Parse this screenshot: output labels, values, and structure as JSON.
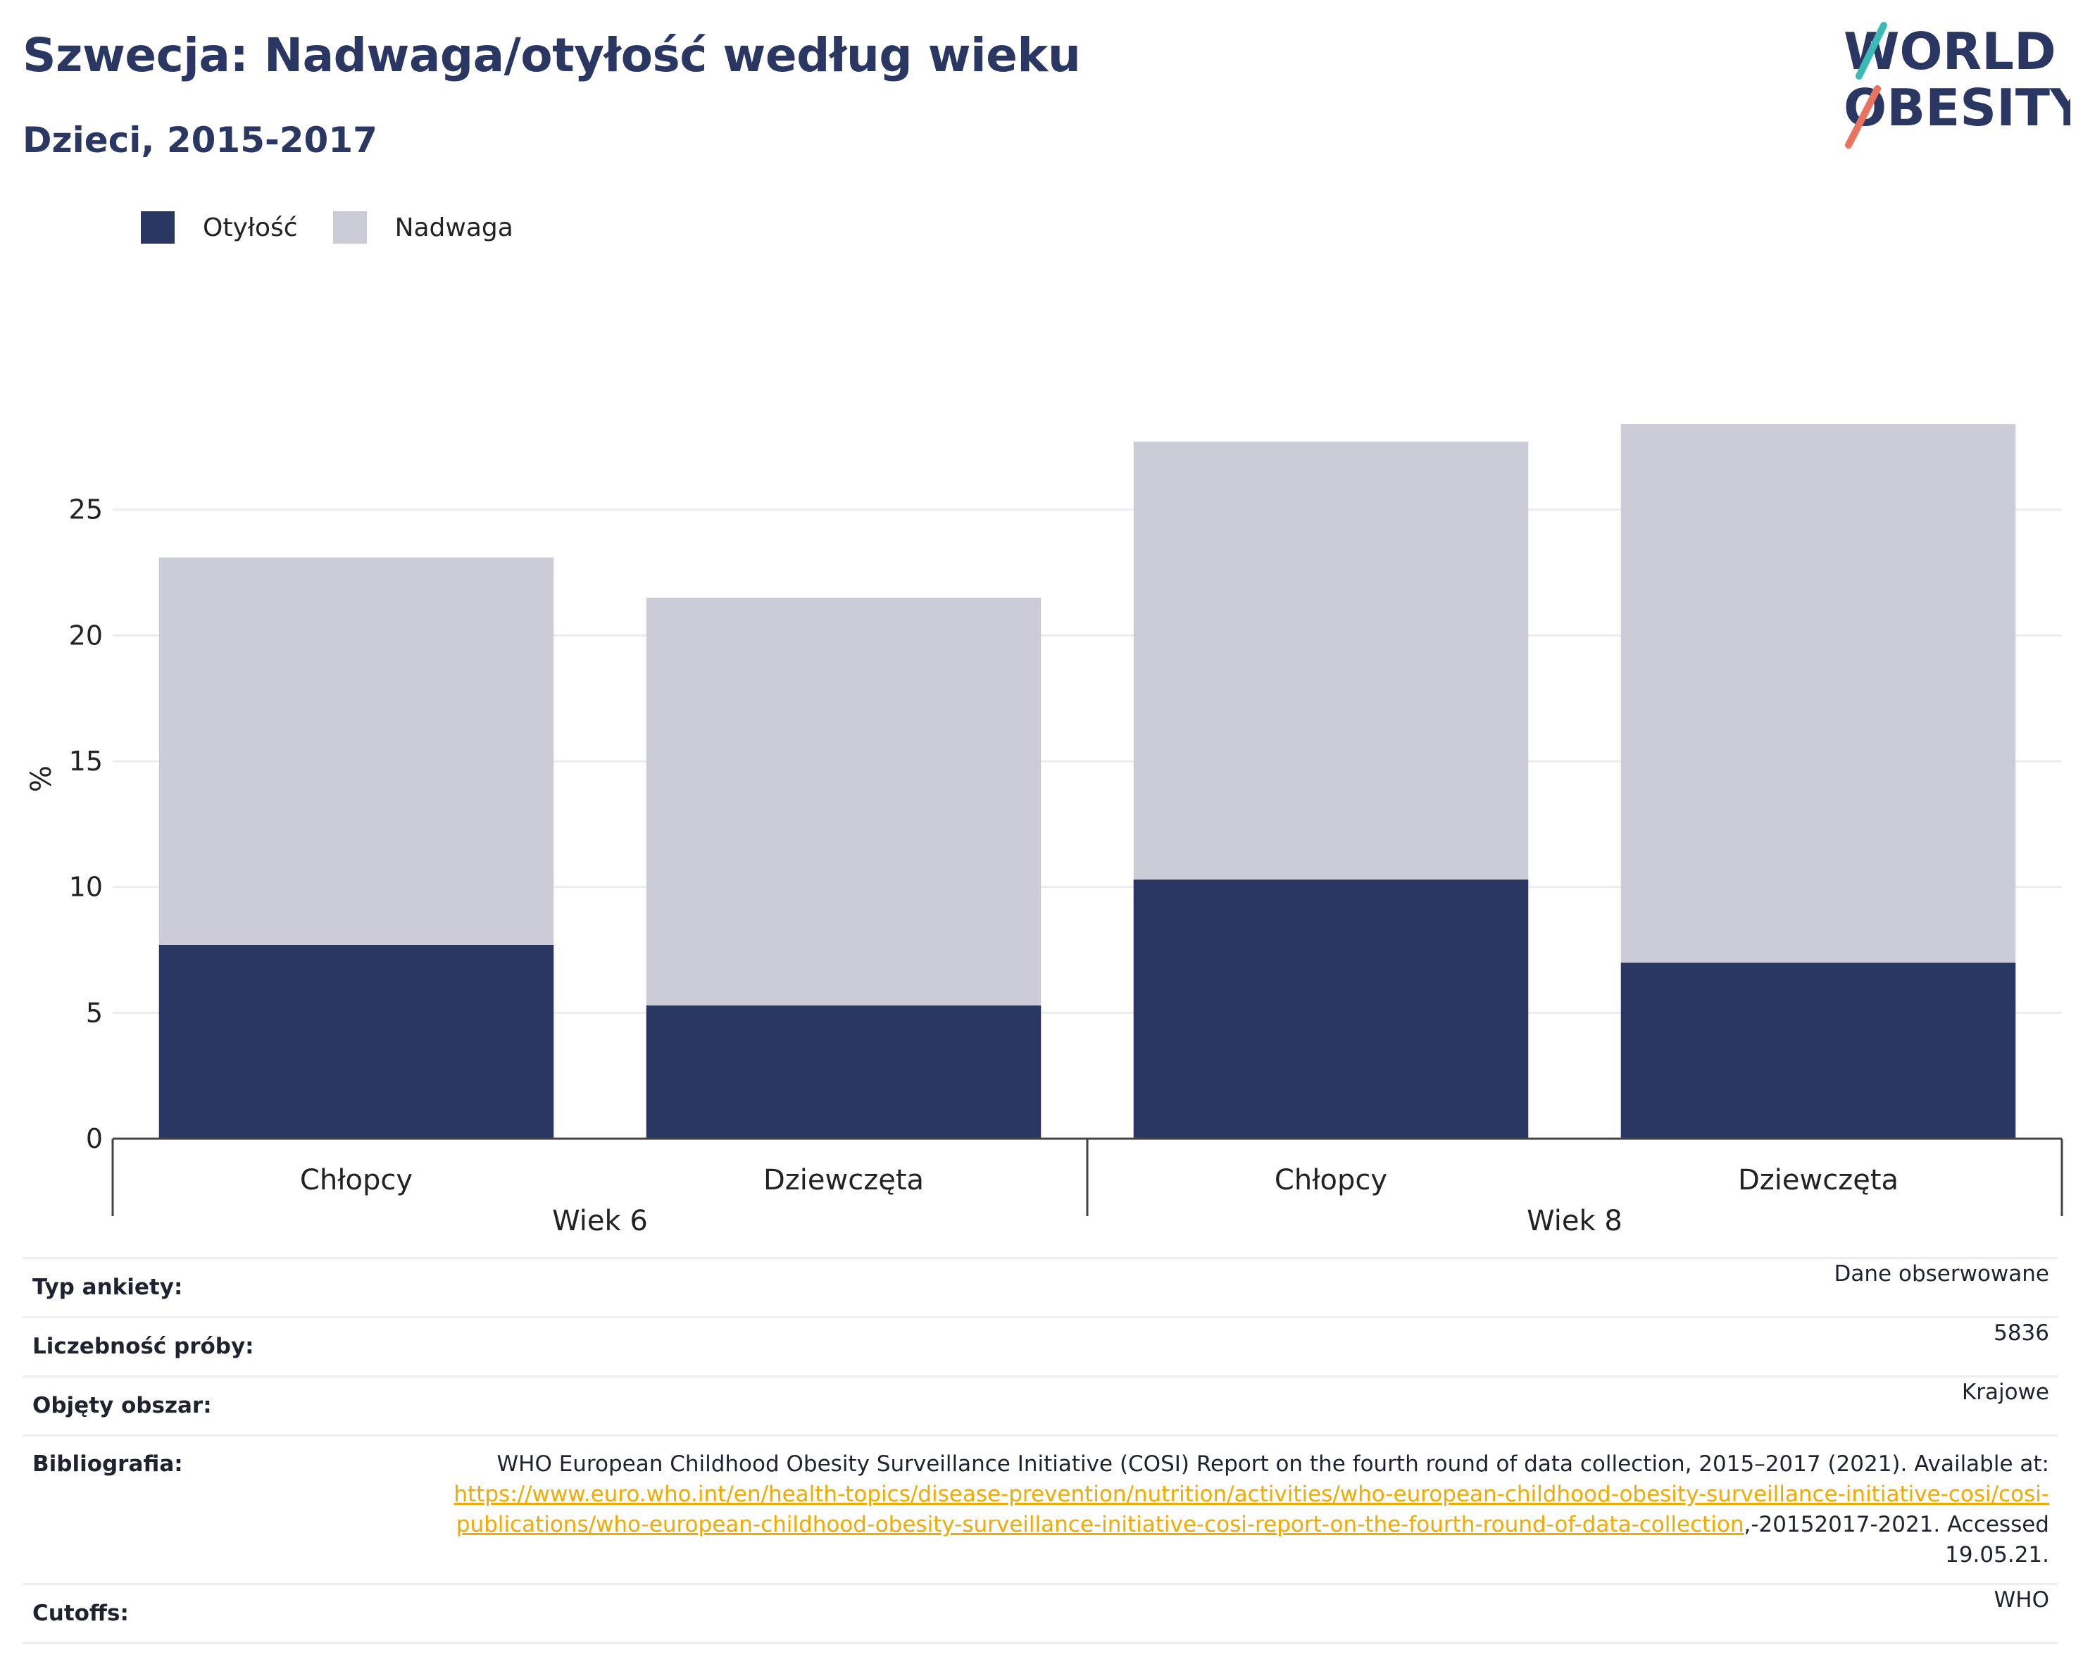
{
  "header": {
    "title": "Szwecja: Nadwaga/otyłość według wieku",
    "subtitle": "Dzieci, 2015-2017"
  },
  "logo": {
    "line1": "WORLD",
    "line2": "OBESITY"
  },
  "legend": [
    {
      "label": "Otyłość",
      "color": "#2a3763"
    },
    {
      "label": "Nadwaga",
      "color": "#cbccd8"
    }
  ],
  "chart_data": {
    "type": "bar",
    "stacked": true,
    "ylabel": "%",
    "ylim": [
      0,
      30
    ],
    "yticks": [
      0,
      5,
      10,
      15,
      20,
      25
    ],
    "grid": true,
    "legend_position": "top-left",
    "categories": [
      "Chłopcy",
      "Dziewczęta",
      "Chłopcy",
      "Dziewczęta"
    ],
    "groups": [
      {
        "label": "Wiek 6",
        "categories": [
          "Chłopcy",
          "Dziewczęta"
        ]
      },
      {
        "label": "Wiek 8",
        "categories": [
          "Chłopcy",
          "Dziewczęta"
        ]
      }
    ],
    "series": [
      {
        "name": "Otyłość",
        "color": "#2a3763",
        "values": [
          7.7,
          5.3,
          10.3,
          7.0
        ]
      },
      {
        "name": "Nadwaga",
        "color": "#cbccd8",
        "values": [
          15.4,
          16.2,
          17.4,
          21.4
        ]
      }
    ]
  },
  "info": {
    "survey_type": {
      "label": "Typ ankiety:",
      "value": "Dane obserwowane"
    },
    "sample_size": {
      "label": "Liczebność próby:",
      "value": "5836"
    },
    "coverage": {
      "label": "Objęty obszar:",
      "value": "Krajowe"
    },
    "bibliography": {
      "label": "Bibliografia:",
      "text_before": "WHO European Childhood Obesity Surveillance Initiative (COSI) Report on the fourth round of data collection, 2015–2017 (2021). Available at: ",
      "link": "https://www.euro.who.int/en/health-topics/disease-prevention/nutrition/activities/who-european-childhood-obesity-surveillance-initiative-cosi/cosi-publications/who-european-childhood-obesity-surveillance-initiative-cosi-report-on-the-fourth-round-of-data-collection",
      "text_after": ",-20152017-2021. Accessed 19.05.21."
    },
    "cutoffs": {
      "label": "Cutoffs:",
      "value": "WHO"
    }
  }
}
